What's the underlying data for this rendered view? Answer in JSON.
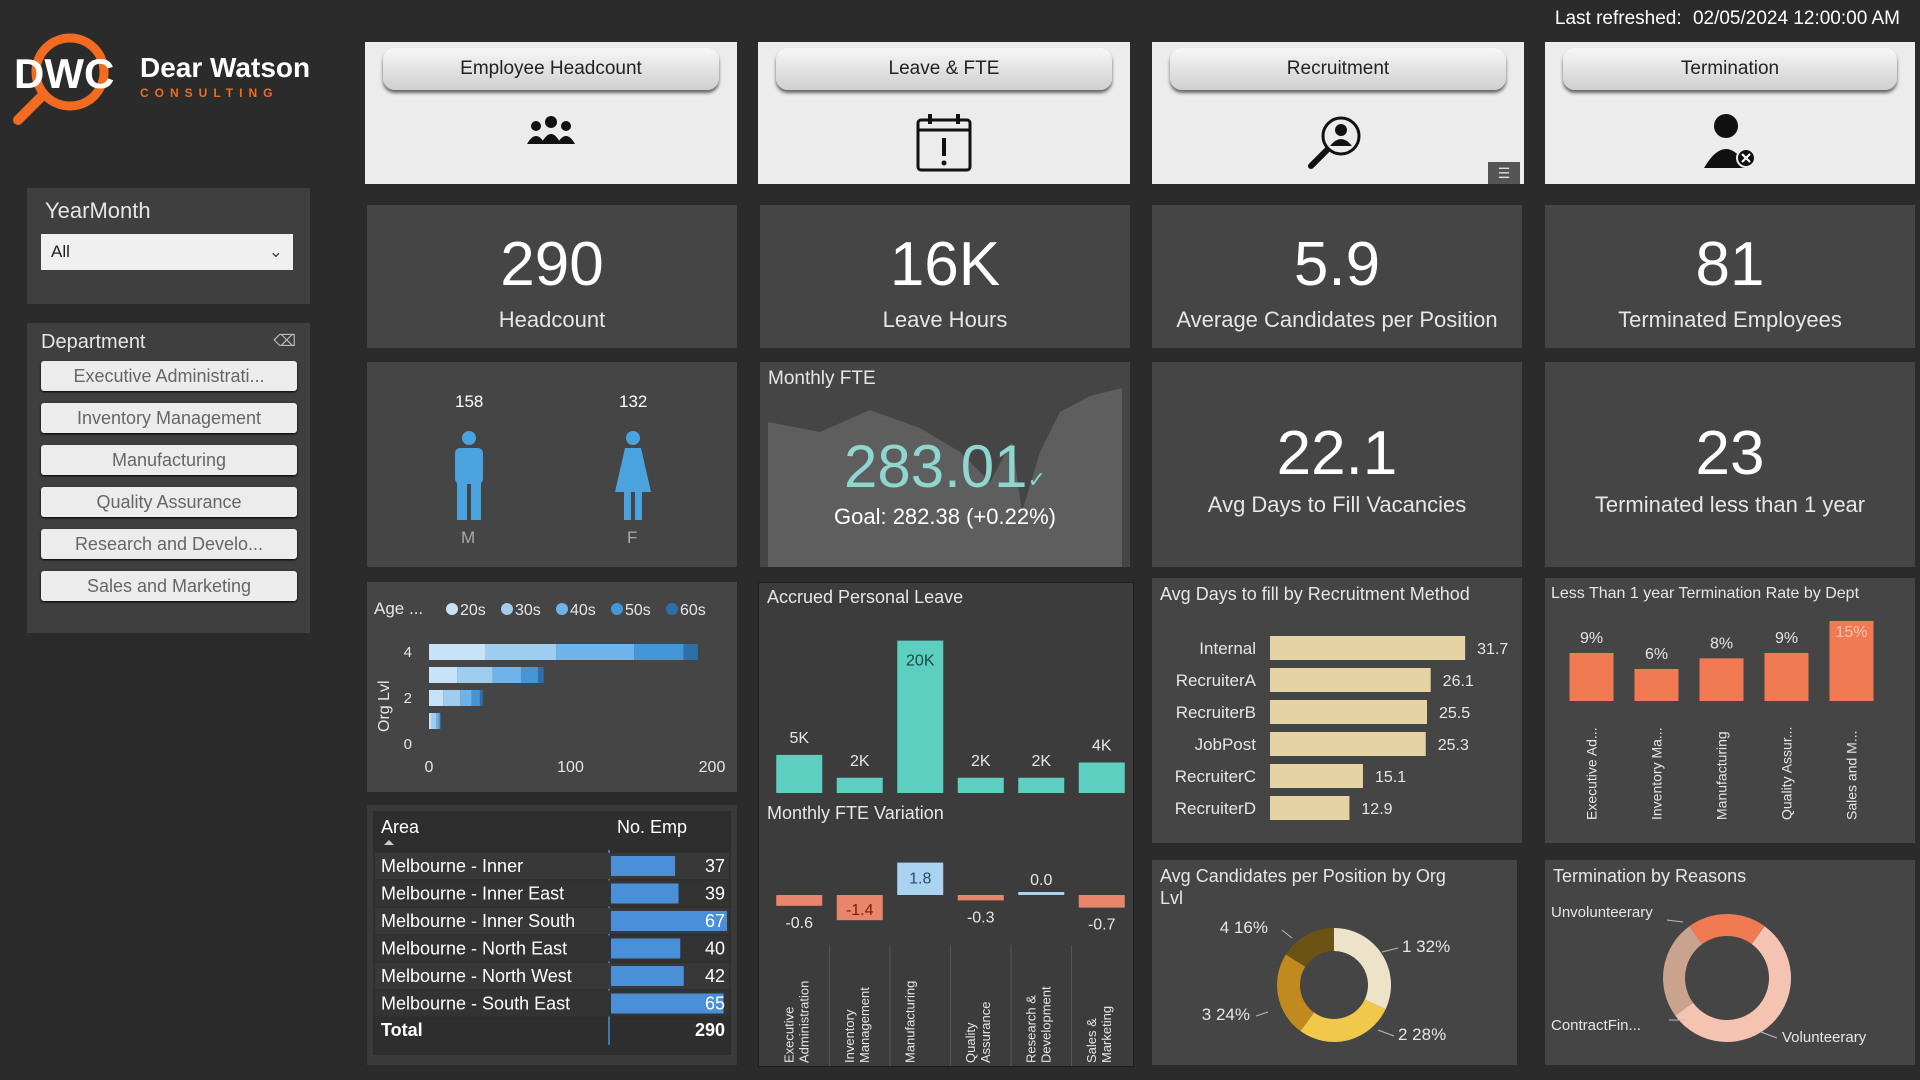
{
  "header": {
    "refresh_label": "Last refreshed:",
    "refresh_value": "02/05/2024 12:00:00 AM"
  },
  "logo": {
    "line1": "Dear Watson",
    "line2": "CONSULTING",
    "mark": "DWC",
    "accent": "#f26b21"
  },
  "slicers": {
    "yearmonth": {
      "title": "YearMonth",
      "selected": "All"
    },
    "department": {
      "title": "Department",
      "items": [
        "Executive Administrati...",
        "Inventory Management",
        "Manufacturing",
        "Quality Assurance",
        "Research and Develo...",
        "Sales and Marketing"
      ]
    }
  },
  "nav": [
    {
      "label": "Employee Headcount",
      "icon": "people-group-icon"
    },
    {
      "label": "Leave & FTE",
      "icon": "calendar-alert-icon"
    },
    {
      "label": "Recruitment",
      "icon": "search-person-icon"
    },
    {
      "label": "Termination",
      "icon": "person-remove-icon"
    }
  ],
  "kpis": [
    {
      "value": "290",
      "label": "Headcount"
    },
    {
      "value": "16K",
      "label": "Leave Hours"
    },
    {
      "value": "5.9",
      "label": "Average Candidates per Position"
    },
    {
      "value": "81",
      "label": "Terminated Employees"
    }
  ],
  "gender": {
    "male_count": "158",
    "female_count": "132",
    "male_label": "M",
    "female_label": "F",
    "male_color": "#4aa3df",
    "female_color": "#4aa3df"
  },
  "monthly_fte": {
    "title": "Monthly FTE",
    "value": "283.01",
    "check": "✓",
    "goal": "Goal: 282.38 (+0.22%)",
    "value_color": "#8fd6d0"
  },
  "kpis2": [
    {
      "value": "22.1",
      "label": "Avg Days to Fill Vacancies"
    },
    {
      "value": "23",
      "label": "Terminated less than 1 year"
    }
  ],
  "chart_data": [
    {
      "id": "age_org",
      "type": "bar",
      "orientation": "horizontal",
      "stacked": true,
      "legend_title": "Age ...",
      "ylabel": "Org Lvl",
      "categories": [
        "4",
        "3",
        "2",
        "1"
      ],
      "series": [
        {
          "name": "20s",
          "values": [
            40,
            20,
            10,
            2
          ],
          "color": "#c8e2f7"
        },
        {
          "name": "30s",
          "values": [
            50,
            25,
            12,
            3
          ],
          "color": "#9fcdf0"
        },
        {
          "name": "40s",
          "values": [
            55,
            20,
            8,
            2
          ],
          "color": "#6eb4ea"
        },
        {
          "name": "50s",
          "values": [
            35,
            12,
            6,
            1
          ],
          "color": "#4596d6"
        },
        {
          "name": "60s",
          "values": [
            10,
            4,
            2,
            0
          ],
          "color": "#2f6fa8"
        }
      ],
      "y_ticks": [
        "4",
        "2",
        "0"
      ],
      "x_ticks": [
        "0",
        "100",
        "200"
      ],
      "xlim": [
        0,
        200
      ]
    },
    {
      "id": "accrued_leave",
      "type": "bar",
      "title": "Accrued Personal Leave",
      "categories": [
        "Executive Administration",
        "Inventory Management",
        "Manufacturing",
        "Quality Assurance",
        "Research & Development",
        "Sales & Marketing"
      ],
      "values": [
        5000,
        2000,
        20000,
        2000,
        2000,
        4000
      ],
      "labels": [
        "5K",
        "2K",
        "20K",
        "2K",
        "2K",
        "4K"
      ],
      "color": "#5ccfc0",
      "ylim": [
        0,
        21000
      ]
    },
    {
      "id": "fte_variation",
      "type": "bar",
      "title": "Monthly FTE Variation",
      "categories": [
        "Executive Administration",
        "Inventory Management",
        "Manufacturing",
        "Quality Assurance",
        "Research & Development",
        "Sales & Marketing"
      ],
      "values": [
        -0.6,
        -1.4,
        1.8,
        -0.3,
        0.0,
        -0.7
      ],
      "labels": [
        "-0.6",
        "-1.4",
        "1.8",
        "-0.3",
        "0.0",
        "-0.7"
      ],
      "x_labels": [
        [
          "Executive",
          "Administration"
        ],
        [
          "Inventory",
          "Management"
        ],
        [
          "Manufacturing"
        ],
        [
          "Quality",
          "Assurance"
        ],
        [
          "Research &",
          "Development"
        ],
        [
          "Sales &",
          "Marketing"
        ]
      ],
      "neg_color": "#e8856b",
      "pos_color": "#a9d3f0"
    },
    {
      "id": "recruit_method",
      "type": "bar",
      "orientation": "horizontal",
      "title": "Avg Days to fill by Recruitment Method",
      "categories": [
        "Internal",
        "RecruiterA",
        "RecruiterB",
        "JobPost",
        "RecruiterC",
        "RecruiterD"
      ],
      "values": [
        31.7,
        26.1,
        25.5,
        25.3,
        15.1,
        12.9
      ],
      "labels": [
        "31.7",
        "26.1",
        "25.5",
        "25.3",
        "15.1",
        "12.9"
      ],
      "color": "#e6d3a3",
      "xlim": [
        0,
        32
      ]
    },
    {
      "id": "term_rate",
      "type": "bar",
      "title": "Less Than 1 year Termination Rate by Dept",
      "categories": [
        "Executive Ad...",
        "Inventory Ma...",
        "Manufacturing",
        "Quality Assur...",
        "Sales and M..."
      ],
      "values": [
        9,
        6,
        8,
        9,
        15
      ],
      "labels": [
        "9%",
        "6%",
        "8%",
        "9%",
        "15%"
      ],
      "color": "#f07a52",
      "ylim": [
        0,
        15
      ]
    },
    {
      "id": "cand_org",
      "type": "pie",
      "donut": true,
      "title": "Avg Candidates per Position by Org",
      "title2": "Lvl",
      "slices": [
        {
          "label": "1 32%",
          "value": 32,
          "color": "#ede3c8"
        },
        {
          "label": "2 28%",
          "value": 28,
          "color": "#f0c94a"
        },
        {
          "label": "3 24%",
          "value": 24,
          "color": "#c08a1f"
        },
        {
          "label": "4 16%",
          "value": 16,
          "color": "#6b5316"
        }
      ]
    },
    {
      "id": "term_reasons",
      "type": "pie",
      "donut": true,
      "title": "Termination by Reasons",
      "slices": [
        {
          "label": "Volunteerary",
          "value": 55,
          "color": "#f4c3b2"
        },
        {
          "label": "ContractFin...",
          "value": 25,
          "color": "#c9a38e"
        },
        {
          "label": "Unvolunteerary",
          "value": 20,
          "color": "#f07a52"
        }
      ]
    }
  ],
  "area_table": {
    "headers": [
      "Area",
      "No. Emp"
    ],
    "rows": [
      {
        "area": "Melbourne - Inner",
        "value": 37
      },
      {
        "area": "Melbourne - Inner East",
        "value": 39
      },
      {
        "area": "Melbourne - Inner South",
        "value": 67
      },
      {
        "area": "Melbourne - North East",
        "value": 40
      },
      {
        "area": "Melbourne - North West",
        "value": 42
      },
      {
        "area": "Melbourne - South East",
        "value": 65
      }
    ],
    "total_label": "Total",
    "total_value": "290",
    "bar_color": "#4a90d9",
    "max": 67
  }
}
